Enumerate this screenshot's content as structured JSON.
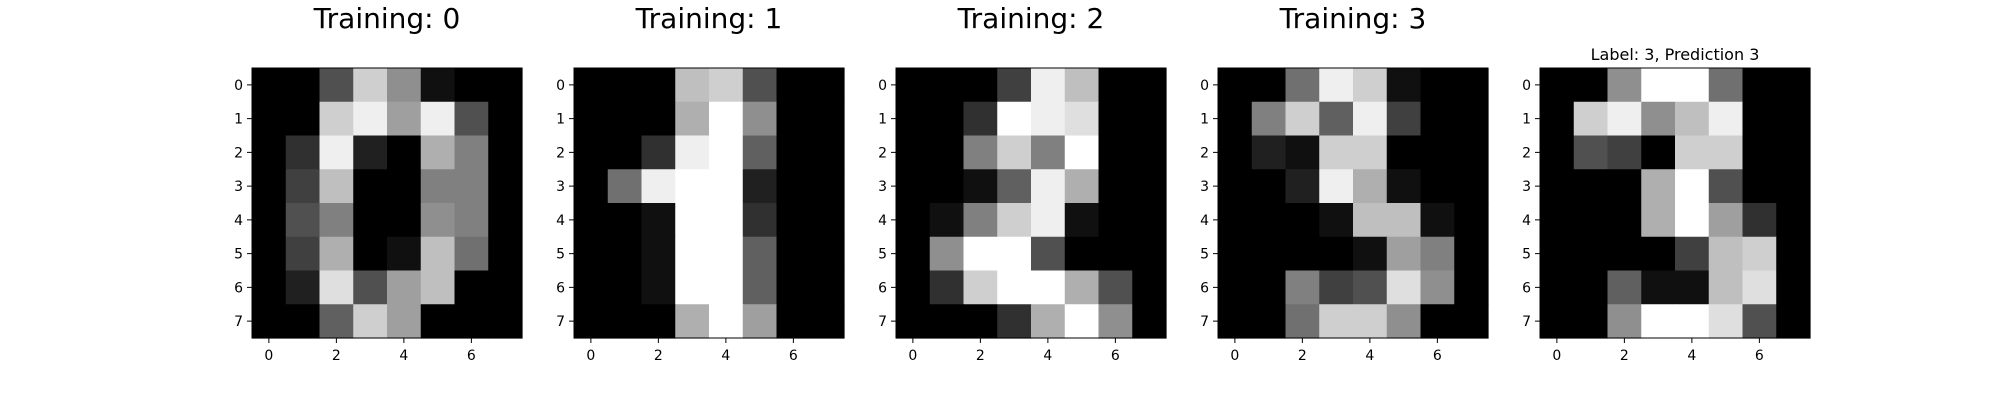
{
  "chart_data": [
    {
      "type": "heatmap",
      "title": "Training: 0",
      "xlabel": "",
      "ylabel": "",
      "colormap": "gray",
      "value_range": [
        0,
        16
      ],
      "x_ticks": [
        "0",
        "2",
        "4",
        "6"
      ],
      "y_ticks": [
        "0",
        "1",
        "2",
        "3",
        "4",
        "5",
        "6",
        "7"
      ],
      "grid": false,
      "values": [
        [
          0,
          0,
          5,
          13,
          9,
          1,
          0,
          0
        ],
        [
          0,
          0,
          13,
          15,
          10,
          15,
          5,
          0
        ],
        [
          0,
          3,
          15,
          2,
          0,
          11,
          8,
          0
        ],
        [
          0,
          4,
          12,
          0,
          0,
          8,
          8,
          0
        ],
        [
          0,
          5,
          8,
          0,
          0,
          9,
          8,
          0
        ],
        [
          0,
          4,
          11,
          0,
          1,
          12,
          7,
          0
        ],
        [
          0,
          2,
          14,
          5,
          10,
          12,
          0,
          0
        ],
        [
          0,
          0,
          6,
          13,
          10,
          0,
          0,
          0
        ]
      ]
    },
    {
      "type": "heatmap",
      "title": "Training: 1",
      "xlabel": "",
      "ylabel": "",
      "colormap": "gray",
      "value_range": [
        0,
        16
      ],
      "x_ticks": [
        "0",
        "2",
        "4",
        "6"
      ],
      "y_ticks": [
        "0",
        "1",
        "2",
        "3",
        "4",
        "5",
        "6",
        "7"
      ],
      "grid": false,
      "values": [
        [
          0,
          0,
          0,
          12,
          13,
          5,
          0,
          0
        ],
        [
          0,
          0,
          0,
          11,
          16,
          9,
          0,
          0
        ],
        [
          0,
          0,
          3,
          15,
          16,
          6,
          0,
          0
        ],
        [
          0,
          7,
          15,
          16,
          16,
          2,
          0,
          0
        ],
        [
          0,
          0,
          1,
          16,
          16,
          3,
          0,
          0
        ],
        [
          0,
          0,
          1,
          16,
          16,
          6,
          0,
          0
        ],
        [
          0,
          0,
          1,
          16,
          16,
          6,
          0,
          0
        ],
        [
          0,
          0,
          0,
          11,
          16,
          10,
          0,
          0
        ]
      ]
    },
    {
      "type": "heatmap",
      "title": "Training: 2",
      "xlabel": "",
      "ylabel": "",
      "colormap": "gray",
      "value_range": [
        0,
        16
      ],
      "x_ticks": [
        "0",
        "2",
        "4",
        "6"
      ],
      "y_ticks": [
        "0",
        "1",
        "2",
        "3",
        "4",
        "5",
        "6",
        "7"
      ],
      "grid": false,
      "values": [
        [
          0,
          0,
          0,
          4,
          15,
          12,
          0,
          0
        ],
        [
          0,
          0,
          3,
          16,
          15,
          14,
          0,
          0
        ],
        [
          0,
          0,
          8,
          13,
          8,
          16,
          0,
          0
        ],
        [
          0,
          0,
          1,
          6,
          15,
          11,
          0,
          0
        ],
        [
          0,
          1,
          8,
          13,
          15,
          1,
          0,
          0
        ],
        [
          0,
          9,
          16,
          16,
          5,
          0,
          0,
          0
        ],
        [
          0,
          3,
          13,
          16,
          16,
          11,
          5,
          0
        ],
        [
          0,
          0,
          0,
          3,
          11,
          16,
          9,
          0
        ]
      ]
    },
    {
      "type": "heatmap",
      "title": "Training: 3",
      "xlabel": "",
      "ylabel": "",
      "colormap": "gray",
      "value_range": [
        0,
        16
      ],
      "x_ticks": [
        "0",
        "2",
        "4",
        "6"
      ],
      "y_ticks": [
        "0",
        "1",
        "2",
        "3",
        "4",
        "5",
        "6",
        "7"
      ],
      "grid": false,
      "values": [
        [
          0,
          0,
          7,
          15,
          13,
          1,
          0,
          0
        ],
        [
          0,
          8,
          13,
          6,
          15,
          4,
          0,
          0
        ],
        [
          0,
          2,
          1,
          13,
          13,
          0,
          0,
          0
        ],
        [
          0,
          0,
          2,
          15,
          11,
          1,
          0,
          0
        ],
        [
          0,
          0,
          0,
          1,
          12,
          12,
          1,
          0
        ],
        [
          0,
          0,
          0,
          0,
          1,
          10,
          8,
          0
        ],
        [
          0,
          0,
          8,
          4,
          5,
          14,
          9,
          0
        ],
        [
          0,
          0,
          7,
          13,
          13,
          9,
          0,
          0
        ]
      ]
    },
    {
      "type": "heatmap",
      "title": "Label: 3, Prediction 3",
      "xlabel": "",
      "ylabel": "",
      "colormap": "gray",
      "value_range": [
        0,
        16
      ],
      "x_ticks": [
        "0",
        "2",
        "4",
        "6"
      ],
      "y_ticks": [
        "0",
        "1",
        "2",
        "3",
        "4",
        "5",
        "6",
        "7"
      ],
      "grid": false,
      "values": [
        [
          0,
          0,
          9,
          16,
          16,
          7,
          0,
          0
        ],
        [
          0,
          13,
          15,
          9,
          12,
          15,
          0,
          0
        ],
        [
          0,
          5,
          4,
          0,
          13,
          13,
          0,
          0
        ],
        [
          0,
          0,
          0,
          11,
          16,
          5,
          0,
          0
        ],
        [
          0,
          0,
          0,
          11,
          16,
          10,
          3,
          0
        ],
        [
          0,
          0,
          0,
          0,
          4,
          12,
          13,
          0
        ],
        [
          0,
          0,
          6,
          1,
          1,
          12,
          14,
          0
        ],
        [
          0,
          0,
          9,
          16,
          16,
          14,
          5,
          0
        ]
      ]
    }
  ]
}
